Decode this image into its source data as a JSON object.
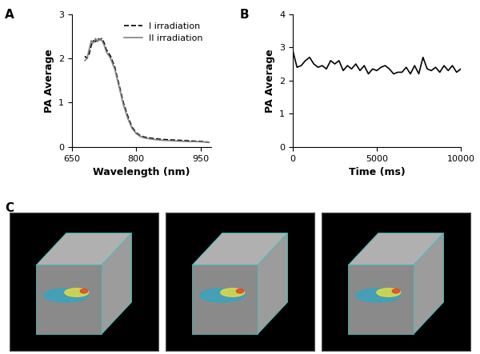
{
  "chart_data": [
    {
      "type": "line",
      "title": "A",
      "x_label": "Wavelength (nm)",
      "y_label": "PA Average",
      "xlim": [
        650,
        975
      ],
      "xticks": [
        650,
        800,
        950
      ],
      "ylim": [
        0,
        3
      ],
      "yticks": [
        0,
        1,
        2,
        3
      ],
      "legend": "upper right",
      "series": [
        {
          "name": "I irradiation",
          "color": "#000000",
          "line_style": "dashed",
          "x": [
            680,
            685,
            690,
            695,
            700,
            705,
            710,
            715,
            720,
            725,
            730,
            740,
            750,
            760,
            770,
            780,
            790,
            800,
            810,
            820,
            840,
            860,
            880,
            900,
            920,
            940,
            960,
            970
          ],
          "values": [
            2.05,
            2.0,
            2.1,
            2.3,
            2.4,
            2.38,
            2.45,
            2.42,
            2.45,
            2.35,
            2.2,
            2.05,
            1.8,
            1.4,
            1.0,
            0.7,
            0.45,
            0.32,
            0.25,
            0.22,
            0.19,
            0.17,
            0.16,
            0.15,
            0.14,
            0.13,
            0.12,
            0.1
          ]
        },
        {
          "name": "II irradiation",
          "color": "#808080",
          "line_style": "solid",
          "x": [
            680,
            685,
            690,
            695,
            700,
            705,
            710,
            715,
            720,
            725,
            730,
            740,
            750,
            760,
            770,
            780,
            790,
            800,
            810,
            820,
            840,
            860,
            880,
            900,
            920,
            940,
            960,
            970
          ],
          "values": [
            1.95,
            2.0,
            2.2,
            2.4,
            2.35,
            2.45,
            2.38,
            2.45,
            2.4,
            2.3,
            2.15,
            2.0,
            1.75,
            1.35,
            0.95,
            0.65,
            0.42,
            0.3,
            0.23,
            0.2,
            0.17,
            0.15,
            0.14,
            0.13,
            0.12,
            0.12,
            0.11,
            0.1
          ]
        }
      ]
    },
    {
      "type": "line",
      "title": "B",
      "x_label": "Time (ms)",
      "y_label": "PA Average",
      "xlim": [
        0,
        10000
      ],
      "xticks": [
        0,
        5000,
        10000
      ],
      "ylim": [
        0,
        4
      ],
      "yticks": [
        0,
        1,
        2,
        3,
        4
      ],
      "series": [
        {
          "name": null,
          "color": "#000000",
          "line_style": "solid",
          "x": [
            0,
            250,
            500,
            750,
            1000,
            1250,
            1500,
            1750,
            2000,
            2250,
            2500,
            2750,
            3000,
            3250,
            3500,
            3750,
            4000,
            4250,
            4500,
            4750,
            5000,
            5250,
            5500,
            5750,
            6000,
            6250,
            6500,
            6750,
            7000,
            7250,
            7500,
            7750,
            8000,
            8250,
            8500,
            8750,
            9000,
            9250,
            9500,
            9750,
            10000
          ],
          "values": [
            2.9,
            2.4,
            2.45,
            2.6,
            2.7,
            2.5,
            2.4,
            2.45,
            2.35,
            2.6,
            2.5,
            2.6,
            2.3,
            2.45,
            2.35,
            2.5,
            2.3,
            2.45,
            2.2,
            2.35,
            2.3,
            2.4,
            2.45,
            2.35,
            2.2,
            2.25,
            2.25,
            2.4,
            2.2,
            2.45,
            2.2,
            2.7,
            2.35,
            2.3,
            2.4,
            2.25,
            2.45,
            2.3,
            2.45,
            2.25,
            2.35
          ]
        }
      ]
    }
  ],
  "image_panel": {
    "title": "C",
    "images": 3
  }
}
